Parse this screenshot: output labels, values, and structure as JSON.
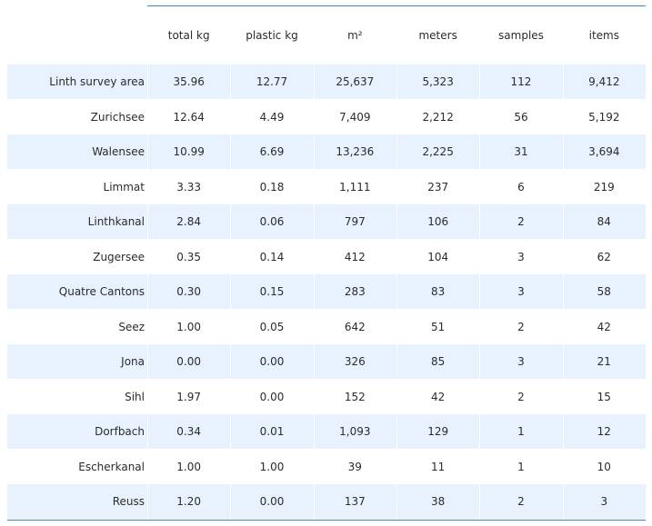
{
  "chart_data": {
    "type": "table",
    "columns": [
      "total kg",
      "plastic kg",
      "m²",
      "meters",
      "samples",
      "items"
    ],
    "rows": [
      {
        "label": "Linth survey area",
        "values": [
          "35.96",
          "12.77",
          "25,637",
          "5,323",
          "112",
          "9,412"
        ]
      },
      {
        "label": "Zurichsee",
        "values": [
          "12.64",
          "4.49",
          "7,409",
          "2,212",
          "56",
          "5,192"
        ]
      },
      {
        "label": "Walensee",
        "values": [
          "10.99",
          "6.69",
          "13,236",
          "2,225",
          "31",
          "3,694"
        ]
      },
      {
        "label": "Limmat",
        "values": [
          "3.33",
          "0.18",
          "1,111",
          "237",
          "6",
          "219"
        ]
      },
      {
        "label": "Linthkanal",
        "values": [
          "2.84",
          "0.06",
          "797",
          "106",
          "2",
          "84"
        ]
      },
      {
        "label": "Zugersee",
        "values": [
          "0.35",
          "0.14",
          "412",
          "104",
          "3",
          "62"
        ]
      },
      {
        "label": "Quatre Cantons",
        "values": [
          "0.30",
          "0.15",
          "283",
          "83",
          "3",
          "58"
        ]
      },
      {
        "label": "Seez",
        "values": [
          "1.00",
          "0.05",
          "642",
          "51",
          "2",
          "42"
        ]
      },
      {
        "label": "Jona",
        "values": [
          "0.00",
          "0.00",
          "326",
          "85",
          "3",
          "21"
        ]
      },
      {
        "label": "Sihl",
        "values": [
          "1.97",
          "0.00",
          "152",
          "42",
          "2",
          "15"
        ]
      },
      {
        "label": "Dorfbach",
        "values": [
          "0.34",
          "0.01",
          "1,093",
          "129",
          "1",
          "12"
        ]
      },
      {
        "label": "Escherkanal",
        "values": [
          "1.00",
          "1.00",
          "39",
          "11",
          "1",
          "10"
        ]
      },
      {
        "label": "Reuss",
        "values": [
          "1.20",
          "0.00",
          "137",
          "38",
          "2",
          "3"
        ]
      }
    ],
    "colors": {
      "rule": "#3a86c8",
      "stripe": "#e8f2fe",
      "text": "#2b2b2b"
    }
  }
}
